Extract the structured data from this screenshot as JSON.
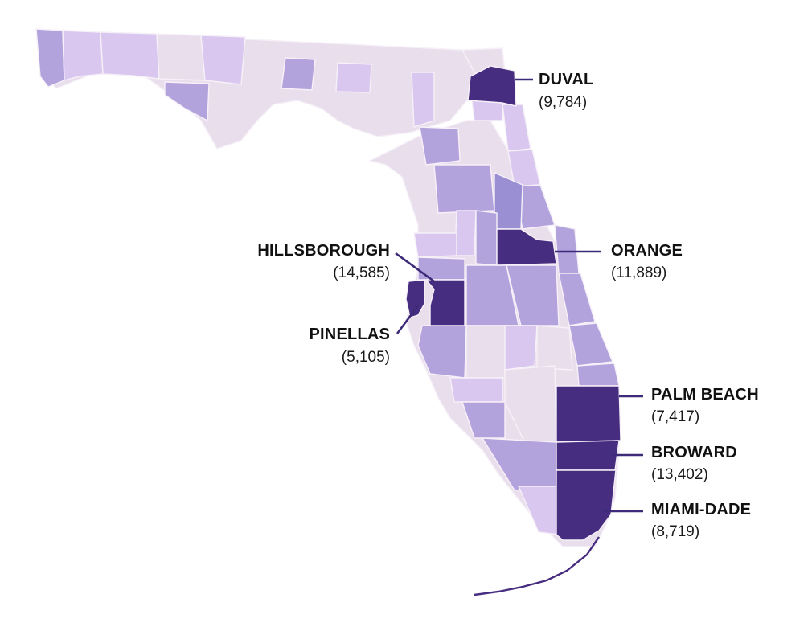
{
  "map": {
    "region": "Florida",
    "unit": "counties",
    "colors": {
      "lightest": "#e9dfec",
      "light": "#d9c7ef",
      "medium": "#b3a3dd",
      "strong": "#9a8fd3",
      "darkest": "#472d80",
      "leader": "#3d2a78",
      "border": "#f6f0f8"
    },
    "highlighted_counties": [
      {
        "name": "DUVAL",
        "value": "(9,784)"
      },
      {
        "name": "ORANGE",
        "value": "(11,889)"
      },
      {
        "name": "HILLSBOROUGH",
        "value": "(14,585)"
      },
      {
        "name": "PINELLAS",
        "value": "(5,105)"
      },
      {
        "name": "PALM BEACH",
        "value": "(7,417)"
      },
      {
        "name": "BROWARD",
        "value": "(13,402)"
      },
      {
        "name": "MIAMI-DADE",
        "value": "(8,719)"
      }
    ]
  }
}
